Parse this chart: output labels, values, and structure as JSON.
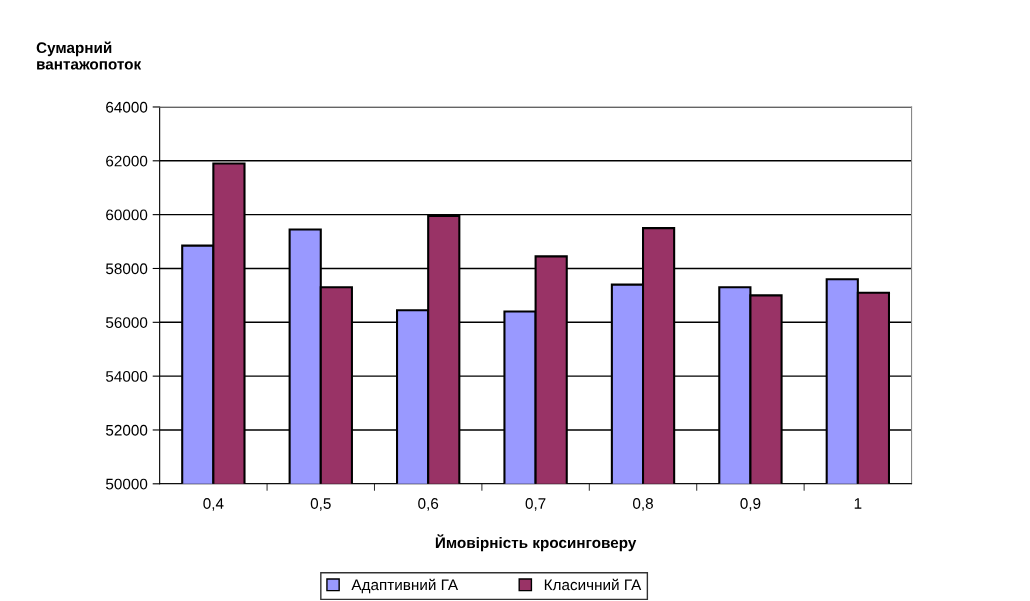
{
  "chart_data": {
    "type": "bar",
    "ylabel": "Сумарний\nвантажопоток",
    "xlabel": "Ймовірність кросинговеру",
    "categories": [
      "0,4",
      "0,5",
      "0,6",
      "0,7",
      "0,8",
      "0,9",
      "1"
    ],
    "series": [
      {
        "name": "Адаптивний ГА",
        "color": "#9999ff",
        "values": [
          58850,
          59450,
          56450,
          56400,
          57400,
          57300,
          57600
        ]
      },
      {
        "name": "Класичний ГА",
        "color": "#993366",
        "values": [
          61900,
          57300,
          59950,
          58450,
          59500,
          57000,
          57100
        ]
      }
    ],
    "ylim": [
      50000,
      64000
    ],
    "yticks": [
      50000,
      52000,
      54000,
      56000,
      58000,
      60000,
      62000,
      64000
    ],
    "grid": "y",
    "legend": "bottom"
  }
}
